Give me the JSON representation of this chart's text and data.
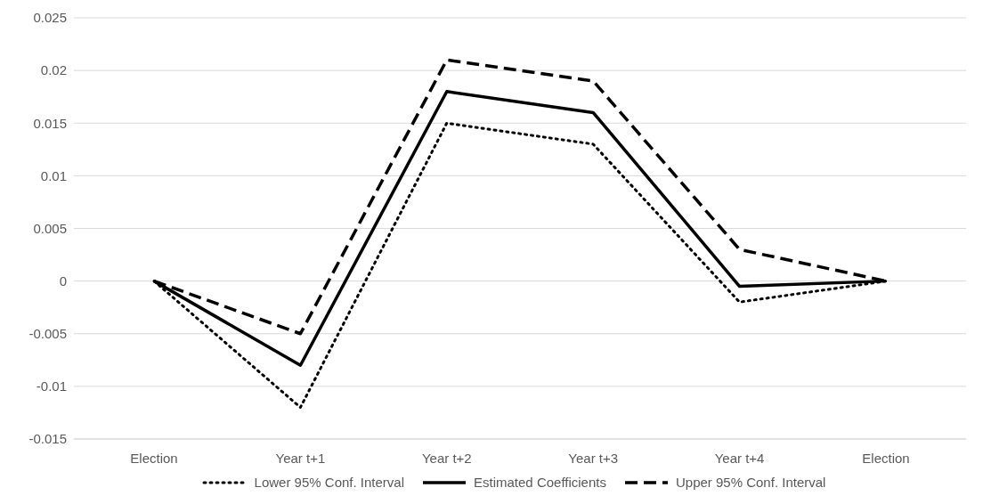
{
  "chart_data": {
    "type": "line",
    "categories": [
      "Election",
      "Year t+1",
      "Year t+2",
      "Year t+3",
      "Year t+4",
      "Election"
    ],
    "series": [
      {
        "name": "Lower 95% Conf. Interval",
        "color": "#000000",
        "line_style": "dotted",
        "values": [
          0,
          -0.012,
          0.015,
          0.013,
          -0.002,
          0
        ]
      },
      {
        "name": "Estimated Coefficients",
        "color": "#000000",
        "line_style": "solid",
        "values": [
          0,
          -0.008,
          0.018,
          0.016,
          -0.0005,
          0
        ]
      },
      {
        "name": "Upper 95% Conf. Interval",
        "color": "#000000",
        "line_style": "dashed",
        "values": [
          0,
          -0.005,
          0.021,
          0.019,
          0.003,
          0
        ]
      }
    ],
    "ylim": [
      -0.015,
      0.025
    ],
    "yticks": [
      -0.015,
      -0.01,
      -0.005,
      0,
      0.005,
      0.01,
      0.015,
      0.02,
      0.025
    ],
    "grid": "y",
    "legend": "bottom",
    "marker": "none"
  }
}
